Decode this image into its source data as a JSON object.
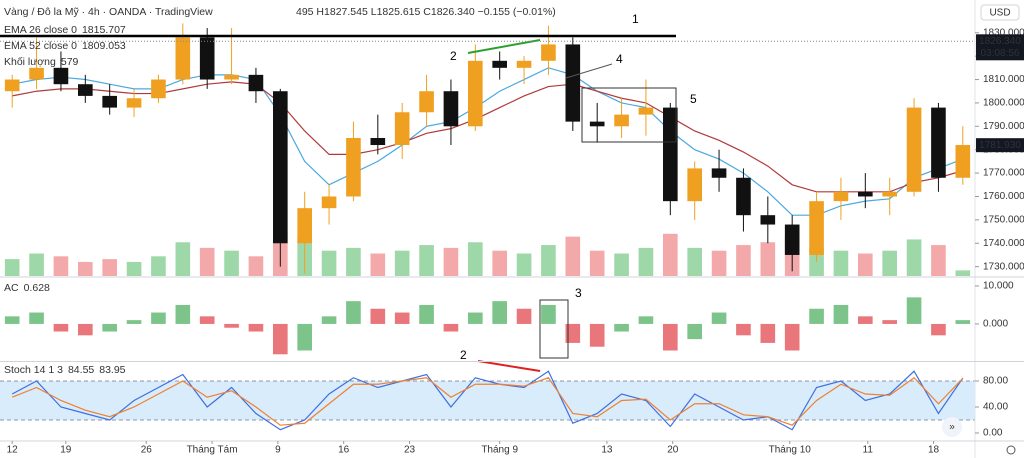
{
  "header": {
    "ohlc": "495 H1827.545 L1825.615 C1826.340 −0.155 (−0.01%)",
    "currency": "USD"
  },
  "chart_data": [
    {
      "type": "candlestick",
      "title": "Vàng / Đô la Mỹ · 4h · OANDA · TradingView",
      "open": [
        1805,
        1810,
        1815,
        1808,
        1803,
        1798,
        1802,
        1810,
        1828,
        1810,
        1812,
        1805,
        1740,
        1755,
        1760,
        1785,
        1782,
        1796,
        1805,
        1790,
        1818,
        1815,
        1818,
        1825,
        1792,
        1790,
        1795,
        1798,
        1758,
        1772,
        1768,
        1752,
        1748,
        1735,
        1758,
        1762,
        1760,
        1762,
        1798,
        1768
      ],
      "high": [
        1812,
        1828,
        1822,
        1812,
        1808,
        1806,
        1812,
        1834,
        1832,
        1832,
        1815,
        1806,
        1762,
        1765,
        1792,
        1795,
        1800,
        1812,
        1810,
        1825,
        1822,
        1820,
        1833,
        1828,
        1800,
        1802,
        1810,
        1800,
        1775,
        1780,
        1772,
        1760,
        1752,
        1762,
        1768,
        1770,
        1768,
        1802,
        1800,
        1790
      ],
      "low": [
        1798,
        1806,
        1805,
        1800,
        1795,
        1794,
        1800,
        1808,
        1806,
        1808,
        1800,
        1730,
        1727,
        1748,
        1758,
        1778,
        1776,
        1790,
        1782,
        1788,
        1810,
        1808,
        1812,
        1788,
        1783,
        1785,
        1786,
        1752,
        1750,
        1762,
        1745,
        1740,
        1728,
        1732,
        1750,
        1755,
        1752,
        1760,
        1762,
        1765
      ],
      "close": [
        1810,
        1815,
        1808,
        1803,
        1798,
        1802,
        1810,
        1828,
        1810,
        1812,
        1805,
        1740,
        1755,
        1760,
        1785,
        1782,
        1796,
        1805,
        1790,
        1818,
        1815,
        1818,
        1825,
        1792,
        1790,
        1795,
        1798,
        1758,
        1772,
        1768,
        1752,
        1748,
        1735,
        1758,
        1762,
        1760,
        1762,
        1798,
        1768,
        1782
      ],
      "up_color": "#f0a020",
      "down_color": "#111111",
      "ylim": [
        1726,
        1844
      ],
      "yticks": [
        {
          "value": 1730,
          "label": "1730.000"
        },
        {
          "value": 1740,
          "label": "1740.000"
        },
        {
          "value": 1750,
          "label": "1750.000"
        },
        {
          "value": 1760,
          "label": "1760.000"
        },
        {
          "value": 1770,
          "label": "1770.000"
        },
        {
          "value": 1780,
          "label": "1780.000"
        },
        {
          "value": 1790,
          "label": "1790.000"
        },
        {
          "value": 1800,
          "label": "1800.000"
        },
        {
          "value": 1810,
          "label": "1810.000"
        },
        {
          "value": 1820,
          "label": "1820.000"
        },
        {
          "value": 1830,
          "label": "1830.000"
        }
      ],
      "xlim": [
        0,
        40
      ],
      "xticks": [
        {
          "value": 0.5,
          "label": "12"
        },
        {
          "value": 2.7,
          "label": "19"
        },
        {
          "value": 6.0,
          "label": "26"
        },
        {
          "value": 8.7,
          "label": "Tháng Tám"
        },
        {
          "value": 11.4,
          "label": "9"
        },
        {
          "value": 14.1,
          "label": "16"
        },
        {
          "value": 16.8,
          "label": "23"
        },
        {
          "value": 20.5,
          "label": "Tháng 9"
        },
        {
          "value": 24.9,
          "label": "13"
        },
        {
          "value": 27.6,
          "label": "20"
        },
        {
          "value": 32.4,
          "label": "Tháng 10"
        },
        {
          "value": 35.6,
          "label": "11"
        },
        {
          "value": 38.3,
          "label": "18"
        }
      ],
      "series": [
        {
          "name": "EMA 26 close 0",
          "legend_value": "1815.707",
          "color": "#4aa8e0",
          "values": [
            1808,
            1810,
            1811,
            1810,
            1808,
            1806,
            1806,
            1810,
            1812,
            1812,
            1810,
            1795,
            1775,
            1765,
            1770,
            1775,
            1782,
            1790,
            1792,
            1798,
            1805,
            1810,
            1815,
            1812,
            1805,
            1800,
            1798,
            1788,
            1780,
            1776,
            1770,
            1762,
            1752,
            1752,
            1756,
            1758,
            1759,
            1768,
            1772,
            1776
          ]
        },
        {
          "name": "EMA 52 close 0",
          "legend_value": "1809.053",
          "color": "#b03a3a",
          "values": [
            1803,
            1805,
            1806,
            1806,
            1805,
            1804,
            1804,
            1806,
            1808,
            1809,
            1808,
            1800,
            1788,
            1778,
            1778,
            1780,
            1783,
            1787,
            1789,
            1793,
            1798,
            1803,
            1807,
            1808,
            1805,
            1802,
            1800,
            1794,
            1788,
            1784,
            1779,
            1773,
            1765,
            1762,
            1762,
            1762,
            1762,
            1766,
            1768,
            1771
          ]
        }
      ],
      "volume": {
        "name": "Khối lượng",
        "legend_value": "579",
        "up_color": "#9fd8a8",
        "down_color": "#f3a9a9",
        "values": [
          6,
          8,
          7,
          5,
          6,
          5,
          7,
          12,
          10,
          9,
          7,
          16,
          14,
          9,
          10,
          8,
          9,
          11,
          10,
          12,
          9,
          8,
          11,
          14,
          9,
          8,
          10,
          15,
          10,
          9,
          11,
          12,
          14,
          10,
          9,
          8,
          9,
          13,
          11,
          2
        ]
      },
      "price_labels": [
        {
          "value": 1826.34,
          "label": "1826.340"
        },
        {
          "value": 1781.93,
          "label": "1781.930"
        }
      ],
      "countdown": "03:08:56",
      "annotations": [
        "1",
        "2",
        "4",
        "5"
      ]
    },
    {
      "type": "histogram",
      "name": "AC",
      "legend_value": "0.628",
      "up_color": "#7cc48a",
      "down_color": "#e8767a",
      "values": [
        2,
        3,
        -2,
        -3,
        -2,
        1,
        3,
        5,
        2,
        -1,
        -2,
        -8,
        -7,
        2,
        6,
        4,
        3,
        5,
        -2,
        3,
        6,
        4,
        5,
        -5,
        -6,
        -2,
        2,
        -7,
        -4,
        3,
        -3,
        -5,
        -7,
        4,
        5,
        2,
        1,
        7,
        -3,
        1
      ],
      "ylim": [
        -9.5,
        12.1
      ],
      "yticks": [
        {
          "value": 0,
          "label": "0.000"
        },
        {
          "value": 10,
          "label": "10.000"
        }
      ],
      "annotations": [
        "3"
      ]
    },
    {
      "type": "line",
      "name": "Stoch 14 1 3",
      "series": [
        {
          "legend_value": "84.55",
          "color": "#3f6fe0",
          "values": [
            60,
            80,
            40,
            30,
            20,
            50,
            70,
            90,
            40,
            70,
            30,
            5,
            20,
            60,
            85,
            70,
            80,
            90,
            40,
            85,
            75,
            70,
            95,
            15,
            30,
            60,
            50,
            10,
            60,
            40,
            20,
            25,
            5,
            70,
            80,
            50,
            60,
            95,
            30,
            84.55
          ]
        },
        {
          "legend_value": "83.95",
          "color": "#f08030",
          "values": [
            55,
            70,
            50,
            35,
            25,
            40,
            60,
            80,
            55,
            65,
            40,
            12,
            15,
            45,
            75,
            75,
            80,
            85,
            55,
            75,
            75,
            72,
            85,
            30,
            25,
            50,
            52,
            20,
            45,
            45,
            28,
            25,
            12,
            50,
            75,
            60,
            58,
            85,
            45,
            83.95
          ]
        }
      ],
      "ylim": [
        -10.8,
        107.7
      ],
      "yticks": [
        {
          "value": 0,
          "label": "0.00"
        },
        {
          "value": 40,
          "label": "40.00"
        },
        {
          "value": 80,
          "label": "80.00"
        }
      ],
      "bands": [
        20,
        80
      ],
      "band_color": "#d8ecfb",
      "annotations": [
        "2"
      ]
    }
  ]
}
